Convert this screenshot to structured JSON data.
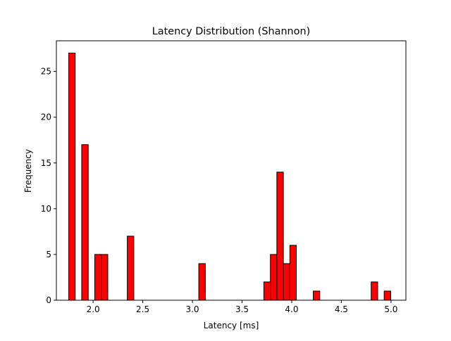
{
  "chart_data": {
    "type": "bar",
    "subtype": "histogram",
    "title": "Latency Distribution (Shannon)",
    "xlabel": "Latency [ms]",
    "ylabel": "Frequency",
    "xlim": [
      1.63,
      5.15
    ],
    "ylim": [
      0,
      28.35
    ],
    "bin_width": 0.0655,
    "x_ticks": [
      2.0,
      2.5,
      3.0,
      3.5,
      4.0,
      4.5,
      5.0
    ],
    "x_tick_labels": [
      "2.0",
      "2.5",
      "3.0",
      "3.5",
      "4.0",
      "4.5",
      "5.0"
    ],
    "y_ticks": [
      0,
      5,
      10,
      15,
      20,
      25
    ],
    "y_tick_labels": [
      "0",
      "5",
      "10",
      "15",
      "20",
      "25"
    ],
    "bins": [
      {
        "x": 1.787,
        "count": 27
      },
      {
        "x": 1.918,
        "count": 17
      },
      {
        "x": 2.049,
        "count": 5
      },
      {
        "x": 2.115,
        "count": 5
      },
      {
        "x": 2.377,
        "count": 7
      },
      {
        "x": 3.097,
        "count": 4
      },
      {
        "x": 3.752,
        "count": 2
      },
      {
        "x": 3.818,
        "count": 5
      },
      {
        "x": 3.883,
        "count": 14
      },
      {
        "x": 3.949,
        "count": 4
      },
      {
        "x": 4.014,
        "count": 6
      },
      {
        "x": 4.25,
        "count": 1
      },
      {
        "x": 4.833,
        "count": 2
      },
      {
        "x": 4.964,
        "count": 1
      }
    ],
    "grid": false,
    "legend": "none",
    "colors": {
      "bar_fill": "#ff0000",
      "bar_edge": "#000000"
    }
  }
}
